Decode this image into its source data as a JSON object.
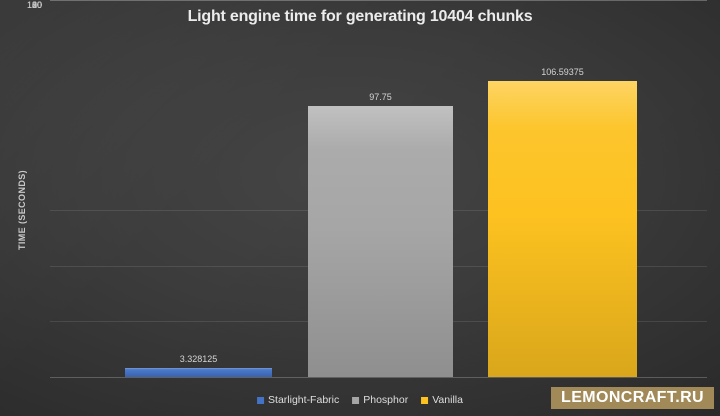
{
  "chart_data": {
    "type": "bar",
    "title": "Light engine time for generating 10404 chunks",
    "xlabel": "",
    "ylabel": "TIME (SECONDS)",
    "categories": [
      "Starlight-Fabric",
      "Phosphor",
      "Vanilla"
    ],
    "values": [
      3.328125,
      97.75,
      106.59375
    ],
    "value_labels": [
      "3.328125",
      "97.75",
      "106.59375"
    ],
    "colors": [
      "#4472c4",
      "#a6a6a6",
      "#fdc220"
    ],
    "yticks": [
      "120",
      "100",
      "80",
      "60",
      "40",
      "20",
      "0"
    ],
    "ylim": [
      0,
      120
    ],
    "grid": true,
    "legend_position": "bottom"
  },
  "watermark": {
    "label": "LEMONCRAFT.RU",
    "background": "#a28a58",
    "text_color": "#ffffff"
  },
  "theme": {
    "background_center": "#454545",
    "background_edge": "#1d1d1d",
    "text_color": "#d4d4d4",
    "gridline_color": "rgba(255,255,255,0.10)"
  }
}
